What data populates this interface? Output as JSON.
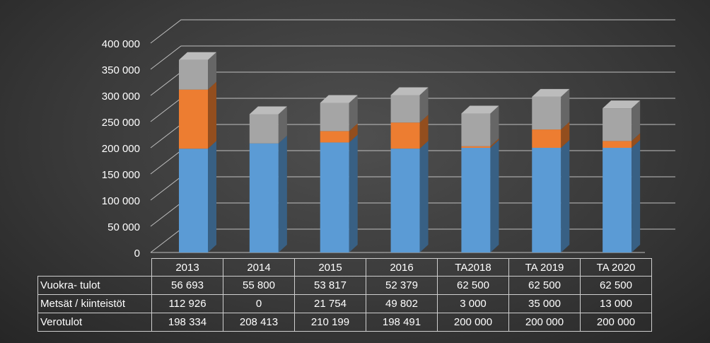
{
  "chart_data": {
    "type": "bar",
    "stacked": true,
    "style": "3d-column",
    "categories": [
      "2013",
      "2014",
      "2015",
      "2016",
      "TA2018",
      "TA 2019",
      "TA 2020"
    ],
    "series": [
      {
        "name": "Verotulot",
        "color": "#5b9bd5",
        "values": [
          198334,
          208413,
          210199,
          198491,
          200000,
          200000,
          200000
        ],
        "display": [
          "198 334",
          "208 413",
          "210 199",
          "198 491",
          "200 000",
          "200 000",
          "200 000"
        ]
      },
      {
        "name": "Metsät / kiinteistöt",
        "color": "#ed7d31",
        "values": [
          112926,
          0,
          21754,
          49802,
          3000,
          35000,
          13000
        ],
        "display": [
          "112 926",
          "0",
          "21 754",
          "49 802",
          "3 000",
          "35 000",
          "13 000"
        ]
      },
      {
        "name": "Vuokra- tulot",
        "color": "#a5a5a5",
        "values": [
          56693,
          55800,
          53817,
          52379,
          62500,
          62500,
          62500
        ],
        "display": [
          "56 693",
          "55 800",
          "53 817",
          "52 379",
          "62 500",
          "62 500",
          "62 500"
        ]
      }
    ],
    "y_ticks": [
      {
        "value": 0,
        "label": "0"
      },
      {
        "value": 50000,
        "label": "50 000"
      },
      {
        "value": 100000,
        "label": "100 000"
      },
      {
        "value": 150000,
        "label": "150 000"
      },
      {
        "value": 200000,
        "label": "200 000"
      },
      {
        "value": 250000,
        "label": "250 000"
      },
      {
        "value": 300000,
        "label": "300 000"
      },
      {
        "value": 350000,
        "label": "350 000"
      },
      {
        "value": 400000,
        "label": "400 000"
      }
    ],
    "ylim": [
      0,
      400000
    ],
    "grid": true,
    "legend": "data-table-below",
    "table_row_order": [
      "Vuokra- tulot",
      "Metsät / kiinteistöt",
      "Verotulot"
    ]
  }
}
